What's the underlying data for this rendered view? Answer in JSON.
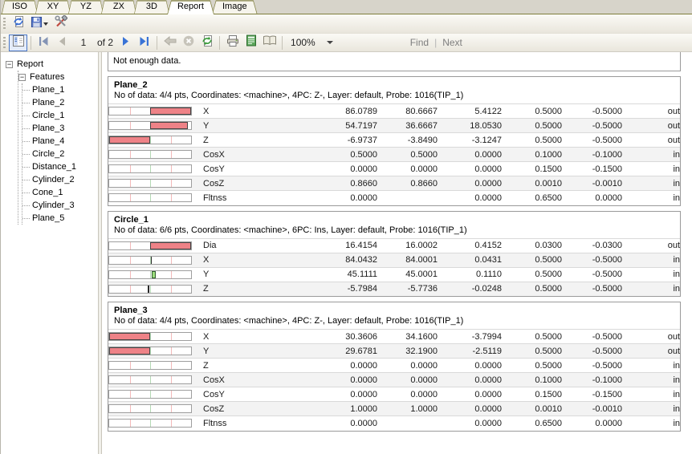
{
  "tabs": {
    "items": [
      {
        "label": "ISO",
        "active": false
      },
      {
        "label": "XY",
        "active": false
      },
      {
        "label": "YZ",
        "active": false
      },
      {
        "label": "ZX",
        "active": false
      },
      {
        "label": "3D",
        "active": false
      },
      {
        "label": "Report",
        "active": true
      },
      {
        "label": "Image",
        "active": false
      }
    ]
  },
  "toolbar_top": {
    "icons": [
      "update-report-icon",
      "save-icon",
      "save-dropdown-caret",
      "tools-icon"
    ]
  },
  "toolbar_view": {
    "page_number": "1",
    "pages_label": "of 2",
    "zoom_value": "100%",
    "find_label": "Find",
    "next_label": "Next",
    "icons": [
      "document-map-icon",
      "first-page-icon",
      "previous-page-icon",
      "next-page-icon",
      "last-page-icon",
      "back-icon",
      "stop-icon",
      "refresh-icon",
      "print-icon",
      "print-layout-icon",
      "page-setup-icon",
      "zoom-dropdown-caret"
    ]
  },
  "tree": {
    "root": "Report",
    "group": "Features",
    "items": [
      "Plane_1",
      "Plane_2",
      "Circle_1",
      "Plane_3",
      "Plane_4",
      "Circle_2",
      "Distance_1",
      "Cylinder_2",
      "Cone_1",
      "Cylinder_3",
      "Plane_5"
    ]
  },
  "report": {
    "notice": "Not enough data.",
    "colors": {
      "status_out": "#e60000",
      "status_in": "#0f7d0f",
      "bar_out": "#ee8287",
      "bar_in": "#9ede7d",
      "bar_tick": "#2a2a2a",
      "tolerance_line": "#f2b9b9",
      "center_line": "#b5d9b5"
    },
    "sections": [
      {
        "title": "Plane_2",
        "info": "No of data: 4/4 pts, Coordinates: <machine>, 4PC: Z-, Layer: default, Probe: 1016(TIP_1)",
        "rows": [
          {
            "label": "X",
            "meas": "86.0789",
            "nom": "80.6667",
            "dev": "5.4122",
            "ptol": "0.5000",
            "ntol": "-0.5000",
            "status": "out",
            "bar": {
              "from": 50,
              "to": 100,
              "c": "out"
            }
          },
          {
            "label": "Y",
            "meas": "54.7197",
            "nom": "36.6667",
            "dev": "18.0530",
            "ptol": "0.5000",
            "ntol": "-0.5000",
            "status": "out",
            "bar": {
              "from": 50,
              "to": 96,
              "c": "out"
            }
          },
          {
            "label": "Z",
            "meas": "-6.9737",
            "nom": "-3.8490",
            "dev": "-3.1247",
            "ptol": "0.5000",
            "ntol": "-0.5000",
            "status": "out",
            "bar": {
              "from": 0,
              "to": 50,
              "c": "out"
            }
          },
          {
            "label": "CosX",
            "meas": "0.5000",
            "nom": "0.5000",
            "dev": "0.0000",
            "ptol": "0.1000",
            "ntol": "-0.1000",
            "status": "in",
            "bar": null
          },
          {
            "label": "CosY",
            "meas": "0.0000",
            "nom": "0.0000",
            "dev": "0.0000",
            "ptol": "0.1500",
            "ntol": "-0.1500",
            "status": "in",
            "bar": null
          },
          {
            "label": "CosZ",
            "meas": "0.8660",
            "nom": "0.8660",
            "dev": "0.0000",
            "ptol": "0.0010",
            "ntol": "-0.0010",
            "status": "in",
            "bar": null
          },
          {
            "label": "Fltnss",
            "meas": "0.0000",
            "nom": "",
            "dev": "0.0000",
            "ptol": "0.6500",
            "ntol": "0.0000",
            "status": "in",
            "bar": null
          }
        ]
      },
      {
        "title": "Circle_1",
        "info": "No of data: 6/6 pts, Coordinates: <machine>, 6PC: Ins, Layer: default, Probe: 1016(TIP_1)",
        "rows": [
          {
            "label": "Dia",
            "meas": "16.4154",
            "nom": "16.0002",
            "dev": "0.4152",
            "ptol": "0.0300",
            "ntol": "-0.0300",
            "status": "out",
            "bar": {
              "from": 50,
              "to": 100,
              "c": "out"
            }
          },
          {
            "label": "X",
            "meas": "84.0432",
            "nom": "84.0001",
            "dev": "0.0431",
            "ptol": "0.5000",
            "ntol": "-0.5000",
            "status": "in",
            "bar": {
              "from": 50.5,
              "to": 52,
              "c": "tick"
            }
          },
          {
            "label": "Y",
            "meas": "45.1111",
            "nom": "45.0001",
            "dev": "0.1110",
            "ptol": "0.5000",
            "ntol": "-0.5000",
            "status": "in",
            "bar": {
              "from": 52,
              "to": 56.5,
              "c": "in"
            }
          },
          {
            "label": "Z",
            "meas": "-5.7984",
            "nom": "-5.7736",
            "dev": "-0.0248",
            "ptol": "0.5000",
            "ntol": "-0.5000",
            "status": "in",
            "bar": {
              "from": 47.5,
              "to": 49,
              "c": "tick"
            }
          }
        ]
      },
      {
        "title": "Plane_3",
        "info": "No of data: 4/4 pts, Coordinates: <machine>, 4PC: Z-, Layer: default, Probe: 1016(TIP_1)",
        "rows": [
          {
            "label": "X",
            "meas": "30.3606",
            "nom": "34.1600",
            "dev": "-3.7994",
            "ptol": "0.5000",
            "ntol": "-0.5000",
            "status": "out",
            "bar": {
              "from": 0,
              "to": 50,
              "c": "out"
            }
          },
          {
            "label": "Y",
            "meas": "29.6781",
            "nom": "32.1900",
            "dev": "-2.5119",
            "ptol": "0.5000",
            "ntol": "-0.5000",
            "status": "out",
            "bar": {
              "from": 0,
              "to": 50,
              "c": "out"
            }
          },
          {
            "label": "Z",
            "meas": "0.0000",
            "nom": "0.0000",
            "dev": "0.0000",
            "ptol": "0.5000",
            "ntol": "-0.5000",
            "status": "in",
            "bar": null
          },
          {
            "label": "CosX",
            "meas": "0.0000",
            "nom": "0.0000",
            "dev": "0.0000",
            "ptol": "0.1000",
            "ntol": "-0.1000",
            "status": "in",
            "bar": null
          },
          {
            "label": "CosY",
            "meas": "0.0000",
            "nom": "0.0000",
            "dev": "0.0000",
            "ptol": "0.1500",
            "ntol": "-0.1500",
            "status": "in",
            "bar": null
          },
          {
            "label": "CosZ",
            "meas": "1.0000",
            "nom": "1.0000",
            "dev": "0.0000",
            "ptol": "0.0010",
            "ntol": "-0.0010",
            "status": "in",
            "bar": null
          },
          {
            "label": "Fltnss",
            "meas": "0.0000",
            "nom": "",
            "dev": "0.0000",
            "ptol": "0.6500",
            "ntol": "0.0000",
            "status": "in",
            "bar": null
          }
        ]
      }
    ]
  }
}
